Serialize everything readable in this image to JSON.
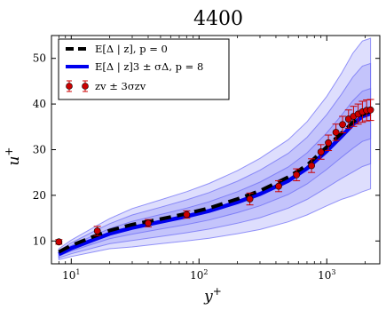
{
  "chart_data": {
    "type": "line",
    "title": "4400",
    "xlabel": "y",
    "xlabel_sup": "+",
    "ylabel": "u",
    "ylabel_sup": "+",
    "x_scale": "log",
    "xlim": [
      7,
      2600
    ],
    "ylim": [
      5,
      55
    ],
    "x_ticks": [
      {
        "value": 10,
        "base": "10",
        "exp": "1"
      },
      {
        "value": 100,
        "base": "10",
        "exp": "2"
      },
      {
        "value": 1000,
        "base": "10",
        "exp": "3"
      }
    ],
    "y_ticks": [
      10,
      20,
      30,
      40,
      50
    ],
    "grid": false,
    "legend": {
      "position": "top-left",
      "entries": [
        {
          "id": "mean",
          "label": "E[Δ | z], p = 0"
        },
        {
          "id": "bands",
          "label": "E[Δ | z]3 ± σΔ, p = 8"
        },
        {
          "id": "obs",
          "label": "zv ± 3σzv"
        }
      ]
    },
    "series": [
      {
        "id": "mean",
        "name": "E[Δ | z], p = 0",
        "style": "dashed",
        "color": "#000000",
        "x": [
          8,
          10,
          15,
          20,
          30,
          50,
          80,
          120,
          200,
          300,
          500,
          700,
          1000,
          1300,
          1600,
          1900,
          2200
        ],
        "y": [
          7.6,
          9.0,
          11.0,
          12.3,
          13.6,
          14.8,
          16.0,
          17.2,
          19.2,
          21.0,
          24.0,
          26.6,
          30.6,
          33.6,
          36.0,
          37.7,
          38.4
        ]
      },
      {
        "id": "blue",
        "name": "E[Δ | z]3 ± σΔ, p = 8",
        "style": "solid",
        "color": "#0000ee",
        "x": [
          8,
          10,
          15,
          20,
          30,
          50,
          80,
          120,
          200,
          300,
          500,
          700,
          1000,
          1300,
          1600,
          1900,
          2200
        ],
        "y": [
          7.1,
          8.4,
          10.3,
          11.6,
          12.9,
          14.2,
          15.4,
          16.6,
          18.5,
          20.3,
          23.2,
          25.9,
          29.7,
          32.9,
          35.5,
          37.3,
          37.9
        ]
      },
      {
        "id": "obs",
        "name": "zv ± 3σzv",
        "style": "markers",
        "color": "#cc0000",
        "x": [
          8,
          16,
          40,
          80,
          250,
          420,
          580,
          760,
          900,
          1030,
          1180,
          1330,
          1480,
          1620,
          1760,
          1900,
          2050,
          2200
        ],
        "y": [
          9.8,
          12.2,
          13.9,
          15.8,
          19.2,
          22.0,
          24.5,
          26.5,
          29.5,
          31.5,
          33.8,
          35.5,
          36.7,
          37.3,
          37.8,
          38.3,
          38.6,
          38.7
        ],
        "err": [
          0.5,
          1.0,
          0.8,
          0.8,
          1.3,
          1.2,
          1.3,
          1.5,
          1.6,
          1.7,
          1.8,
          1.8,
          2.0,
          2.2,
          2.2,
          2.3,
          2.3,
          2.3
        ]
      }
    ],
    "bands": {
      "color": "#6a6af5",
      "x": [
        8,
        10,
        15,
        20,
        30,
        50,
        80,
        120,
        200,
        300,
        500,
        700,
        1000,
        1300,
        1600,
        1900,
        2200
      ],
      "sigma": [
        0.4,
        0.6,
        0.9,
        1.1,
        1.4,
        1.6,
        1.8,
        2.0,
        2.3,
        2.6,
        3.0,
        3.4,
        4.0,
        4.6,
        5.2,
        5.5,
        5.5
      ],
      "multipliers": [
        1,
        2,
        3
      ]
    }
  }
}
